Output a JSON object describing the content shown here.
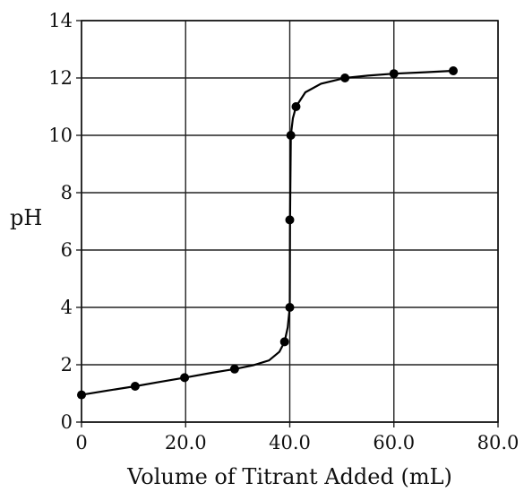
{
  "chart_data": {
    "type": "scatter",
    "xlabel": "Volume of Titrant Added (mL)",
    "ylabel": "pH",
    "xlim": [
      0,
      80
    ],
    "ylim": [
      0,
      14
    ],
    "grid": true,
    "xticks": [
      0,
      20,
      40,
      60,
      80
    ],
    "xtick_labels": [
      "0",
      "20.0",
      "40.0",
      "60.0",
      "80.0"
    ],
    "yticks": [
      0,
      2,
      4,
      6,
      8,
      10,
      12,
      14
    ],
    "ytick_labels": [
      "0",
      "2",
      "4",
      "6",
      "8",
      "10",
      "12",
      "14"
    ],
    "series": [
      {
        "points": [
          {
            "x": 0,
            "y": 0.95
          },
          {
            "x": 10.3,
            "y": 1.25
          },
          {
            "x": 19.8,
            "y": 1.55
          },
          {
            "x": 29.4,
            "y": 1.85
          },
          {
            "x": 39.0,
            "y": 2.8
          },
          {
            "x": 40.0,
            "y": 4.0
          },
          {
            "x": 40.0,
            "y": 7.05
          },
          {
            "x": 40.2,
            "y": 10.0
          },
          {
            "x": 41.2,
            "y": 11.0
          },
          {
            "x": 50.6,
            "y": 12.0
          },
          {
            "x": 60.0,
            "y": 12.15
          },
          {
            "x": 71.4,
            "y": 12.25
          }
        ],
        "curve": [
          [
            0,
            0.95
          ],
          [
            5,
            1.1
          ],
          [
            10.3,
            1.25
          ],
          [
            15,
            1.4
          ],
          [
            19.8,
            1.55
          ],
          [
            25,
            1.72
          ],
          [
            29.4,
            1.85
          ],
          [
            33,
            1.98
          ],
          [
            36,
            2.15
          ],
          [
            38,
            2.45
          ],
          [
            39.0,
            2.8
          ],
          [
            39.6,
            3.3
          ],
          [
            40.0,
            4.0
          ],
          [
            40.05,
            7.05
          ],
          [
            40.2,
            10.0
          ],
          [
            40.6,
            10.6
          ],
          [
            41.2,
            11.0
          ],
          [
            43,
            11.5
          ],
          [
            46,
            11.8
          ],
          [
            50.6,
            12.0
          ],
          [
            55,
            12.08
          ],
          [
            60.0,
            12.15
          ],
          [
            66,
            12.2
          ],
          [
            71.4,
            12.25
          ]
        ]
      }
    ]
  }
}
